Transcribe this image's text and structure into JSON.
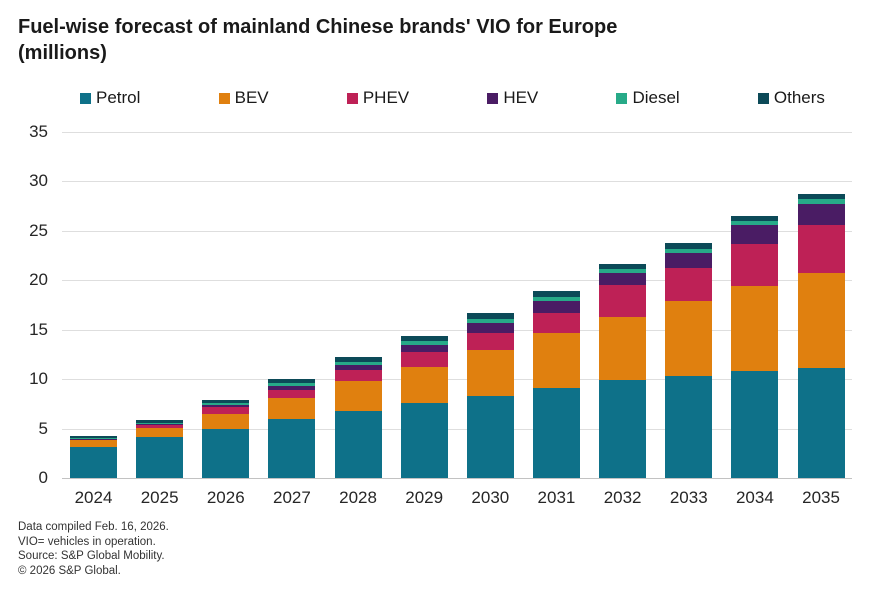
{
  "title_line1": "Fuel-wise forecast of mainland Chinese brands' VIO for Europe",
  "title_line2": "(millions)",
  "footnotes": {
    "line1": "Data compiled Feb. 16, 2026.",
    "line2": "VIO= vehicles in operation.",
    "line3": "Source: S&P Global Mobility.",
    "line4": "© 2026 S&P Global."
  },
  "chart_data": {
    "type": "bar",
    "stacked": true,
    "title": "Fuel-wise forecast of mainland Chinese brands' VIO for Europe (millions)",
    "categories": [
      "2024",
      "2025",
      "2026",
      "2027",
      "2028",
      "2029",
      "2030",
      "2031",
      "2032",
      "2033",
      "2034",
      "2035"
    ],
    "series": [
      {
        "name": "Petrol",
        "color": "#0E7189",
        "values": [
          3.1,
          4.1,
          5.0,
          6.0,
          6.8,
          7.6,
          8.3,
          9.1,
          9.9,
          10.35,
          10.85,
          11.1
        ]
      },
      {
        "name": "BEV",
        "color": "#E0800F",
        "values": [
          0.7,
          1.0,
          1.5,
          2.1,
          3.0,
          3.6,
          4.6,
          5.6,
          6.4,
          7.6,
          8.6,
          9.6
        ]
      },
      {
        "name": "PHEV",
        "color": "#BE2156",
        "values": [
          0.1,
          0.3,
          0.7,
          0.8,
          1.1,
          1.5,
          1.75,
          2.0,
          3.2,
          3.3,
          4.2,
          4.9
        ]
      },
      {
        "name": "HEV",
        "color": "#4A1C64",
        "values": [
          0.05,
          0.1,
          0.2,
          0.4,
          0.5,
          0.75,
          1.0,
          1.25,
          1.25,
          1.5,
          1.9,
          2.1
        ]
      },
      {
        "name": "Diesel",
        "color": "#27AA88",
        "values": [
          0.05,
          0.1,
          0.15,
          0.3,
          0.35,
          0.4,
          0.4,
          0.4,
          0.35,
          0.4,
          0.4,
          0.55
        ]
      },
      {
        "name": "Others",
        "color": "#0C4A58",
        "values": [
          0.2,
          0.3,
          0.35,
          0.4,
          0.5,
          0.55,
          0.6,
          0.6,
          0.55,
          0.6,
          0.55,
          0.5
        ]
      }
    ],
    "xlabel": "",
    "ylabel": "",
    "ylim": [
      0,
      35
    ],
    "yticks": [
      0,
      5,
      10,
      15,
      20,
      25,
      30,
      35
    ],
    "grid": true,
    "legend_position": "top"
  }
}
